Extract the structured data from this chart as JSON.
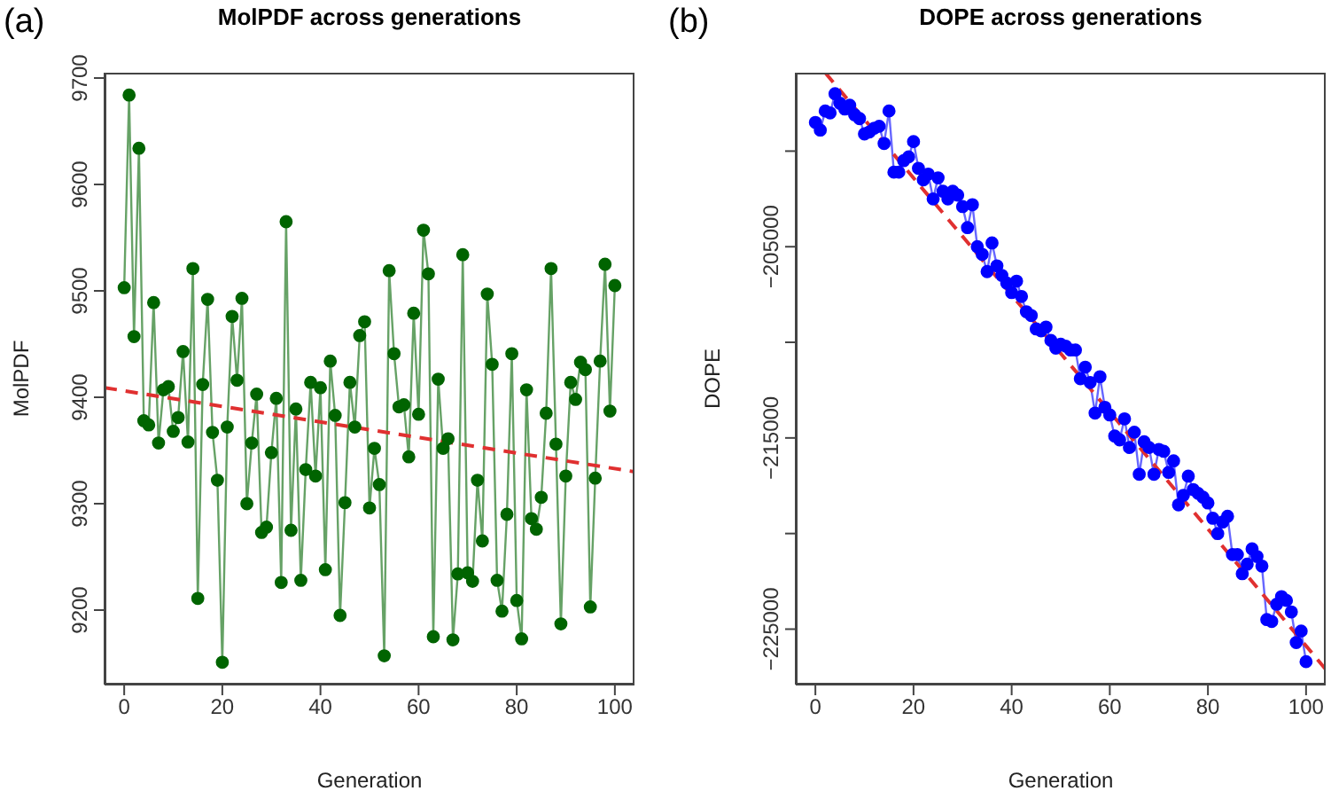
{
  "chart_data": [
    {
      "type": "line",
      "title": "MolPDF across generations",
      "xlabel": "Generation",
      "ylabel": "MolPDF",
      "annotations": [
        "(a)"
      ],
      "marker": "circle",
      "xlim": [
        -4,
        104
      ],
      "xticks": [
        0,
        20,
        40,
        60,
        80,
        100
      ],
      "ylim": [
        9130,
        9705
      ],
      "yticks": [
        9200,
        9300,
        9400,
        9500,
        9600,
        9700
      ],
      "x": [
        0,
        1,
        2,
        3,
        4,
        5,
        6,
        7,
        8,
        9,
        10,
        11,
        12,
        13,
        14,
        15,
        16,
        17,
        18,
        19,
        20,
        21,
        22,
        23,
        24,
        25,
        26,
        27,
        28,
        29,
        30,
        31,
        32,
        33,
        34,
        35,
        36,
        37,
        38,
        39,
        40,
        41,
        42,
        43,
        44,
        45,
        46,
        47,
        48,
        49,
        50,
        51,
        52,
        53,
        54,
        55,
        56,
        57,
        58,
        59,
        60,
        61,
        62,
        63,
        64,
        65,
        66,
        67,
        68,
        69,
        70,
        71,
        72,
        73,
        74,
        75,
        76,
        77,
        78,
        79,
        80,
        81,
        82,
        83,
        84,
        85,
        86,
        87,
        88,
        89,
        90,
        91,
        92,
        93,
        94,
        95,
        96,
        97,
        98,
        99,
        100
      ],
      "series": [
        {
          "color": "#006400",
          "values": [
            9503,
            9684,
            9457,
            9634,
            9378,
            9374,
            9489,
            9357,
            9407,
            9410,
            9368,
            9381,
            9443,
            9358,
            9521,
            9211,
            9412,
            9492,
            9367,
            9322,
            9151,
            9372,
            9476,
            9416,
            9493,
            9300,
            9357,
            9403,
            9273,
            9278,
            9348,
            9399,
            9226,
            9565,
            9275,
            9389,
            9228,
            9332,
            9414,
            9326,
            9409,
            9238,
            9434,
            9383,
            9195,
            9301,
            9414,
            9372,
            9458,
            9471,
            9296,
            9352,
            9318,
            9157,
            9519,
            9441,
            9391,
            9393,
            9344,
            9479,
            9384,
            9557,
            9516,
            9175,
            9417,
            9352,
            9361,
            9172,
            9234,
            9534,
            9235,
            9227,
            9322,
            9265,
            9497,
            9431,
            9228,
            9199,
            9290,
            9441,
            9209,
            9173,
            9407,
            9286,
            9276,
            9306,
            9385,
            9521,
            9356,
            9187,
            9326,
            9414,
            9398,
            9433,
            9426,
            9203,
            9324,
            9434,
            9525,
            9387,
            9505
          ]
        },
        {
          "type": "line",
          "color": "#e03030",
          "line_style": "dashed",
          "marker": "none",
          "x": [
            -4,
            104
          ],
          "values": [
            9409,
            9330
          ]
        }
      ]
    },
    {
      "type": "line",
      "title": "DOPE across generations",
      "xlabel": "Generation",
      "ylabel": "DOPE",
      "annotations": [
        "(b)"
      ],
      "marker": "circle",
      "xlim": [
        -4,
        104
      ],
      "xticks": [
        0,
        20,
        40,
        60,
        80,
        100
      ],
      "ylim": [
        -227900,
        -195900
      ],
      "yticks": [
        {
          "value": -200000,
          "label": null
        },
        {
          "value": -205000,
          "label": "−205000"
        },
        {
          "value": -210000,
          "label": null
        },
        {
          "value": -215000,
          "label": "−215000"
        },
        {
          "value": -220000,
          "label": null
        },
        {
          "value": -225000,
          "label": "−225000"
        }
      ],
      "x": [
        0,
        1,
        2,
        3,
        4,
        5,
        6,
        7,
        8,
        9,
        10,
        11,
        12,
        13,
        14,
        15,
        16,
        17,
        18,
        19,
        20,
        21,
        22,
        23,
        24,
        25,
        26,
        27,
        28,
        29,
        30,
        31,
        32,
        33,
        34,
        35,
        36,
        37,
        38,
        39,
        40,
        41,
        42,
        43,
        44,
        45,
        46,
        47,
        48,
        49,
        50,
        51,
        52,
        53,
        54,
        55,
        56,
        57,
        58,
        59,
        60,
        61,
        62,
        63,
        64,
        65,
        66,
        67,
        68,
        69,
        70,
        71,
        72,
        73,
        74,
        75,
        76,
        77,
        78,
        79,
        80,
        81,
        82,
        83,
        84,
        85,
        86,
        87,
        88,
        89,
        90,
        91,
        92,
        93,
        94,
        95,
        96,
        97,
        98,
        99,
        100
      ],
      "series": [
        {
          "color": "#0000ff",
          "values": [
            -198500,
            -198900,
            -197900,
            -198000,
            -197000,
            -197500,
            -197800,
            -197600,
            -198100,
            -198300,
            -199100,
            -199000,
            -198800,
            -198700,
            -199600,
            -197900,
            -201100,
            -201100,
            -200500,
            -200300,
            -199500,
            -200900,
            -201500,
            -201200,
            -202500,
            -201400,
            -202100,
            -202500,
            -202100,
            -202300,
            -202900,
            -204000,
            -202800,
            -205000,
            -205400,
            -206300,
            -204800,
            -206000,
            -206500,
            -206900,
            -207400,
            -206800,
            -207600,
            -208400,
            -208600,
            -209300,
            -209400,
            -209200,
            -209900,
            -210300,
            -210100,
            -210200,
            -210400,
            -210400,
            -211900,
            -211300,
            -212100,
            -213700,
            -211800,
            -213400,
            -213800,
            -214900,
            -215100,
            -214000,
            -215500,
            -214700,
            -216900,
            -215200,
            -215500,
            -216900,
            -215600,
            -215700,
            -216800,
            -216200,
            -218500,
            -218000,
            -217000,
            -217700,
            -217900,
            -218100,
            -218400,
            -219200,
            -220000,
            -219400,
            -219100,
            -221100,
            -221100,
            -222100,
            -221600,
            -220800,
            -221200,
            -221700,
            -224500,
            -224600,
            -223700,
            -223300,
            -223500,
            -224100,
            -225700,
            -225100,
            -226700
          ]
        },
        {
          "type": "line",
          "color": "#e03030",
          "line_style": "dashed",
          "marker": "none",
          "x": [
            2,
            104
          ],
          "values": [
            -195900,
            -227100
          ]
        }
      ]
    }
  ]
}
